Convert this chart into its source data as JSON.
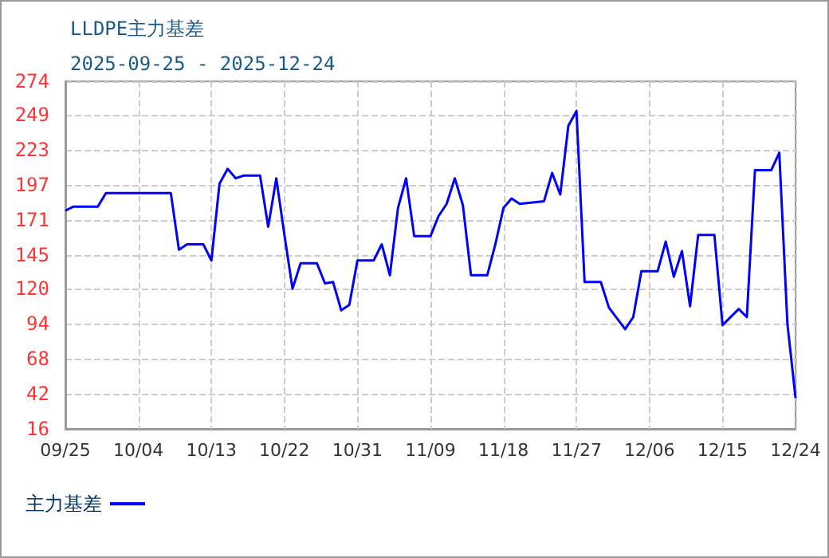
{
  "chart_data": {
    "type": "line",
    "title": "LLDPE主力基差",
    "subtitle": "2025-09-25 - 2025-12-24",
    "x": [
      "2025-09-25",
      "2025-09-26",
      "2025-09-29",
      "2025-09-30",
      "2025-10-08",
      "2025-10-09",
      "2025-10-10",
      "2025-10-12",
      "2025-10-13",
      "2025-10-14",
      "2025-10-15",
      "2025-10-16",
      "2025-10-17",
      "2025-10-19",
      "2025-10-20",
      "2025-10-21",
      "2025-10-22",
      "2025-10-23",
      "2025-10-24",
      "2025-10-26",
      "2025-10-27",
      "2025-10-28",
      "2025-10-29",
      "2025-10-30",
      "2025-10-31",
      "2025-11-02",
      "2025-11-03",
      "2025-11-04",
      "2025-11-05",
      "2025-11-06",
      "2025-11-07",
      "2025-11-09",
      "2025-11-10",
      "2025-11-11",
      "2025-11-12",
      "2025-11-13",
      "2025-11-14",
      "2025-11-16",
      "2025-11-17",
      "2025-11-18",
      "2025-11-19",
      "2025-11-20",
      "2025-11-23",
      "2025-11-24",
      "2025-11-25",
      "2025-11-26",
      "2025-11-27",
      "2025-11-28",
      "2025-11-30",
      "2025-12-01",
      "2025-12-03",
      "2025-12-04",
      "2025-12-05",
      "2025-12-07",
      "2025-12-08",
      "2025-12-09",
      "2025-12-10",
      "2025-12-11",
      "2025-12-12",
      "2025-12-14",
      "2025-12-15",
      "2025-12-17",
      "2025-12-18",
      "2025-12-19",
      "2025-12-21",
      "2025-12-22",
      "2025-12-23",
      "2025-12-24"
    ],
    "series": [
      {
        "name": "主力基差",
        "color": "#0000ff",
        "values": [
          178,
          181,
          181,
          191,
          191,
          149,
          153,
          153,
          141,
          198,
          209,
          202,
          204,
          204,
          166,
          202,
          160,
          120,
          139,
          139,
          124,
          125,
          104,
          108,
          141,
          141,
          153,
          130,
          180,
          202,
          159,
          159,
          174,
          183,
          202,
          182,
          130,
          130,
          153,
          180,
          187,
          183,
          185,
          206,
          190,
          241,
          252,
          125,
          125,
          106,
          90,
          99,
          133,
          133,
          155,
          129,
          148,
          107,
          160,
          160,
          93,
          105,
          99,
          208,
          208,
          221,
          94,
          39
        ]
      }
    ],
    "xlim": [
      "2025-09-25",
      "2025-12-24"
    ],
    "xticks": [
      {
        "value": "2025-09-25",
        "label": "09/25"
      },
      {
        "value": "2025-10-04",
        "label": "10/04"
      },
      {
        "value": "2025-10-13",
        "label": "10/13"
      },
      {
        "value": "2025-10-22",
        "label": "10/22"
      },
      {
        "value": "2025-10-31",
        "label": "10/31"
      },
      {
        "value": "2025-11-09",
        "label": "11/09"
      },
      {
        "value": "2025-11-18",
        "label": "11/18"
      },
      {
        "value": "2025-11-27",
        "label": "11/27"
      },
      {
        "value": "2025-12-06",
        "label": "12/06"
      },
      {
        "value": "2025-12-15",
        "label": "12/15"
      },
      {
        "value": "2025-12-24",
        "label": "12/24"
      }
    ],
    "ylim": [
      16,
      274
    ],
    "yticks": [
      16,
      42,
      68,
      94,
      120,
      145,
      171,
      197,
      223,
      249,
      274
    ],
    "grid": true,
    "legend": "bottom left",
    "marker": "none",
    "line_style": "solid"
  }
}
